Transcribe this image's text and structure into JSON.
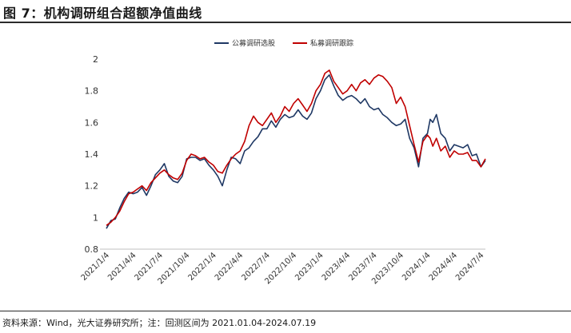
{
  "figure": {
    "title": "图 7：机构调研组合超额净值曲线",
    "source": "资料来源：Wind，光大证券研究所；注：回测区间为 2021.01.04-2024.07.19"
  },
  "chart_data": {
    "type": "line",
    "title": "",
    "xlabel": "",
    "ylabel": "",
    "ylim": [
      0.8,
      2.0
    ],
    "yticks": [
      "0.8",
      "1",
      "1.2",
      "1.4",
      "1.6",
      "1.8",
      "2"
    ],
    "xticks": [
      "2021/1/4",
      "2021/4/4",
      "2021/7/4",
      "2021/10/4",
      "2022/1/4",
      "2022/4/4",
      "2022/7/4",
      "2022/10/4",
      "2023/1/4",
      "2023/4/4",
      "2023/7/4",
      "2023/10/4",
      "2024/1/4",
      "2024/4/4",
      "2024/7/4"
    ],
    "grid": false,
    "legend": "top-center",
    "x_unit": "month since 2021-01",
    "series": [
      {
        "name": "公募调研选股",
        "color": "#1f3864",
        "x": [
          0,
          0.5,
          1,
          1.5,
          2,
          2.5,
          3,
          3.5,
          4,
          4.5,
          5,
          5.5,
          6,
          6.5,
          7,
          7.5,
          8,
          8.5,
          9,
          9.5,
          10,
          10.5,
          11,
          11.5,
          12,
          12.5,
          13,
          13.5,
          14,
          14.5,
          15,
          15.5,
          16,
          16.5,
          17,
          17.5,
          18,
          18.5,
          19,
          19.5,
          20,
          20.5,
          21,
          21.5,
          22,
          22.5,
          23,
          23.5,
          24,
          24.5,
          25,
          25.5,
          26,
          26.5,
          27,
          27.5,
          28,
          28.5,
          29,
          29.5,
          30,
          30.5,
          31,
          31.5,
          32,
          32.5,
          33,
          33.5,
          34,
          34.5,
          35,
          35.5,
          36,
          36.3,
          36.6,
          37,
          37.5,
          38,
          38.5,
          39,
          39.5,
          40,
          40.5,
          41,
          41.5,
          42,
          42.5
        ],
        "values": [
          0.93,
          0.98,
          0.99,
          1.06,
          1.12,
          1.16,
          1.15,
          1.16,
          1.19,
          1.14,
          1.2,
          1.27,
          1.3,
          1.34,
          1.26,
          1.23,
          1.22,
          1.26,
          1.37,
          1.38,
          1.38,
          1.36,
          1.37,
          1.33,
          1.3,
          1.26,
          1.2,
          1.3,
          1.38,
          1.37,
          1.34,
          1.42,
          1.44,
          1.48,
          1.51,
          1.56,
          1.56,
          1.61,
          1.57,
          1.62,
          1.65,
          1.63,
          1.64,
          1.68,
          1.64,
          1.62,
          1.66,
          1.75,
          1.8,
          1.87,
          1.9,
          1.83,
          1.77,
          1.74,
          1.76,
          1.77,
          1.75,
          1.72,
          1.75,
          1.7,
          1.68,
          1.69,
          1.65,
          1.63,
          1.6,
          1.58,
          1.59,
          1.62,
          1.5,
          1.44,
          1.32,
          1.5,
          1.53,
          1.62,
          1.6,
          1.65,
          1.53,
          1.5,
          1.42,
          1.46,
          1.45,
          1.44,
          1.46,
          1.39,
          1.4,
          1.32,
          1.36
        ]
      },
      {
        "name": "私募调研跟踪",
        "color": "#c00000",
        "x": [
          0,
          0.5,
          1,
          1.5,
          2,
          2.5,
          3,
          3.5,
          4,
          4.5,
          5,
          5.5,
          6,
          6.5,
          7,
          7.5,
          8,
          8.5,
          9,
          9.5,
          10,
          10.5,
          11,
          11.5,
          12,
          12.5,
          13,
          13.5,
          14,
          14.5,
          15,
          15.5,
          16,
          16.5,
          17,
          17.5,
          18,
          18.5,
          19,
          19.5,
          20,
          20.5,
          21,
          21.5,
          22,
          22.5,
          23,
          23.5,
          24,
          24.5,
          25,
          25.5,
          26,
          26.5,
          27,
          27.5,
          28,
          28.5,
          29,
          29.5,
          30,
          30.5,
          31,
          31.5,
          32,
          32.5,
          33,
          33.5,
          34,
          34.5,
          35,
          35.5,
          36,
          36.3,
          36.6,
          37,
          37.5,
          38,
          38.5,
          39,
          39.5,
          40,
          40.5,
          41,
          41.5,
          42,
          42.5
        ],
        "values": [
          0.95,
          0.97,
          1.0,
          1.04,
          1.1,
          1.15,
          1.16,
          1.18,
          1.2,
          1.17,
          1.22,
          1.25,
          1.28,
          1.3,
          1.27,
          1.25,
          1.24,
          1.28,
          1.36,
          1.4,
          1.39,
          1.37,
          1.38,
          1.35,
          1.33,
          1.29,
          1.28,
          1.33,
          1.37,
          1.4,
          1.42,
          1.48,
          1.58,
          1.64,
          1.6,
          1.58,
          1.62,
          1.66,
          1.6,
          1.64,
          1.7,
          1.67,
          1.72,
          1.75,
          1.71,
          1.67,
          1.72,
          1.8,
          1.84,
          1.91,
          1.93,
          1.86,
          1.82,
          1.78,
          1.8,
          1.84,
          1.8,
          1.85,
          1.87,
          1.84,
          1.88,
          1.9,
          1.89,
          1.86,
          1.82,
          1.72,
          1.76,
          1.7,
          1.58,
          1.46,
          1.35,
          1.48,
          1.52,
          1.5,
          1.45,
          1.5,
          1.42,
          1.45,
          1.38,
          1.42,
          1.4,
          1.4,
          1.41,
          1.36,
          1.36,
          1.32,
          1.37
        ]
      }
    ]
  }
}
